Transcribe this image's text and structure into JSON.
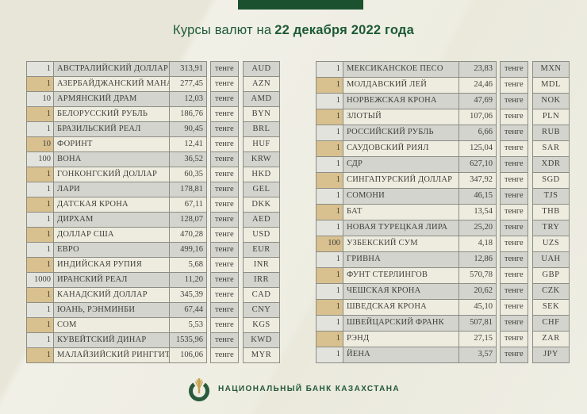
{
  "title": {
    "prefix": "Курсы валют на",
    "date": "22 декабря 2022 года"
  },
  "left_table": {
    "rows": [
      {
        "qty": "1",
        "name": "АВСТРАЛИЙСКИЙ ДОЛЛАР",
        "rate": "313,91",
        "unit": "тенге",
        "code": "AUD"
      },
      {
        "qty": "1",
        "name": "АЗЕРБАЙДЖАНСКИЙ МАНАТ",
        "rate": "277,45",
        "unit": "тенге",
        "code": "AZN"
      },
      {
        "qty": "10",
        "name": "АРМЯНСКИЙ ДРАМ",
        "rate": "12,03",
        "unit": "тенге",
        "code": "AMD"
      },
      {
        "qty": "1",
        "name": "БЕЛОРУССКИЙ РУБЛЬ",
        "rate": "186,76",
        "unit": "тенге",
        "code": "BYN"
      },
      {
        "qty": "1",
        "name": "БРАЗИЛЬСКИЙ РЕАЛ",
        "rate": "90,45",
        "unit": "тенге",
        "code": "BRL"
      },
      {
        "qty": "10",
        "name": "ФОРИНТ",
        "rate": "12,41",
        "unit": "тенге",
        "code": "HUF"
      },
      {
        "qty": "100",
        "name": "ВОНА",
        "rate": "36,52",
        "unit": "тенге",
        "code": "KRW"
      },
      {
        "qty": "1",
        "name": "ГОНКОНГСКИЙ ДОЛЛАР",
        "rate": "60,35",
        "unit": "тенге",
        "code": "HKD"
      },
      {
        "qty": "1",
        "name": "ЛАРИ",
        "rate": "178,81",
        "unit": "тенге",
        "code": "GEL"
      },
      {
        "qty": "1",
        "name": "ДАТСКАЯ КРОНА",
        "rate": "67,11",
        "unit": "тенге",
        "code": "DKK"
      },
      {
        "qty": "1",
        "name": "ДИРХАМ",
        "rate": "128,07",
        "unit": "тенге",
        "code": "AED"
      },
      {
        "qty": "1",
        "name": "ДОЛЛАР США",
        "rate": "470,28",
        "unit": "тенге",
        "code": "USD"
      },
      {
        "qty": "1",
        "name": "ЕВРО",
        "rate": "499,16",
        "unit": "тенге",
        "code": "EUR"
      },
      {
        "qty": "1",
        "name": "ИНДИЙСКАЯ РУПИЯ",
        "rate": "5,68",
        "unit": "тенге",
        "code": "INR"
      },
      {
        "qty": "1000",
        "name": "ИРАНСКИЙ РЕАЛ",
        "rate": "11,20",
        "unit": "тенге",
        "code": "IRR"
      },
      {
        "qty": "1",
        "name": "КАНАДСКИЙ ДОЛЛАР",
        "rate": "345,39",
        "unit": "тенге",
        "code": "CAD"
      },
      {
        "qty": "1",
        "name": "ЮАНЬ, РЭНМИНБИ",
        "rate": "67,44",
        "unit": "тенге",
        "code": "CNY"
      },
      {
        "qty": "1",
        "name": "СОМ",
        "rate": "5,53",
        "unit": "тенге",
        "code": "KGS"
      },
      {
        "qty": "1",
        "name": "КУВЕЙТСКИЙ ДИНАР",
        "rate": "1535,96",
        "unit": "тенге",
        "code": "KWD"
      },
      {
        "qty": "1",
        "name": "МАЛАЙЗИЙСКИЙ РИНГГИТ",
        "rate": "106,06",
        "unit": "тенге",
        "code": "MYR"
      }
    ]
  },
  "right_table": {
    "rows": [
      {
        "qty": "1",
        "name": "МЕКСИКАНСКОЕ ПЕСО",
        "rate": "23,83",
        "unit": "тенге",
        "code": "MXN"
      },
      {
        "qty": "1",
        "name": "МОЛДАВСКИЙ ЛЕЙ",
        "rate": "24,46",
        "unit": "тенге",
        "code": "MDL"
      },
      {
        "qty": "1",
        "name": "НОРВЕЖСКАЯ КРОНА",
        "rate": "47,69",
        "unit": "тенге",
        "code": "NOK"
      },
      {
        "qty": "1",
        "name": "ЗЛОТЫЙ",
        "rate": "107,06",
        "unit": "тенге",
        "code": "PLN"
      },
      {
        "qty": "1",
        "name": "РОССИЙСКИЙ РУБЛЬ",
        "rate": "6,66",
        "unit": "тенге",
        "code": "RUB"
      },
      {
        "qty": "1",
        "name": "САУДОВСКИЙ РИЯЛ",
        "rate": "125,04",
        "unit": "тенге",
        "code": "SAR"
      },
      {
        "qty": "1",
        "name": "СДР",
        "rate": "627,10",
        "unit": "тенге",
        "code": "XDR"
      },
      {
        "qty": "1",
        "name": "СИНГАПУРСКИЙ ДОЛЛАР",
        "rate": "347,92",
        "unit": "тенге",
        "code": "SGD"
      },
      {
        "qty": "1",
        "name": "СОМОНИ",
        "rate": "46,15",
        "unit": "тенге",
        "code": "TJS"
      },
      {
        "qty": "1",
        "name": "БАТ",
        "rate": "13,54",
        "unit": "тенге",
        "code": "THB"
      },
      {
        "qty": "1",
        "name": "НОВАЯ ТУРЕЦКАЯ ЛИРА",
        "rate": "25,20",
        "unit": "тенге",
        "code": "TRY"
      },
      {
        "qty": "100",
        "name": "УЗБЕКСКИЙ СУМ",
        "rate": "4,18",
        "unit": "тенге",
        "code": "UZS"
      },
      {
        "qty": "1",
        "name": "ГРИВНА",
        "rate": "12,86",
        "unit": "тенге",
        "code": "UAH"
      },
      {
        "qty": "1",
        "name": "ФУНТ СТЕРЛИНГОВ",
        "rate": "570,78",
        "unit": "тенге",
        "code": "GBP"
      },
      {
        "qty": "1",
        "name": "ЧЕШСКАЯ КРОНА",
        "rate": "20,62",
        "unit": "тенге",
        "code": "CZK"
      },
      {
        "qty": "1",
        "name": "ШВЕДСКАЯ КРОНА",
        "rate": "45,10",
        "unit": "тенге",
        "code": "SEK"
      },
      {
        "qty": "1",
        "name": "ШВЕЙЦАРСКИЙ ФРАНК",
        "rate": "507,81",
        "unit": "тенге",
        "code": "CHF"
      },
      {
        "qty": "1",
        "name": "РЭНД",
        "rate": "27,15",
        "unit": "тенге",
        "code": "ZAR"
      },
      {
        "qty": "1",
        "name": "ЙЕНА",
        "rate": "3,57",
        "unit": "тенге",
        "code": "JPY"
      }
    ]
  },
  "footer": {
    "bank_name": "НАЦИОНАЛЬНЫЙ БАНК КАЗАХСТАНА",
    "logo": "national-bank-emblem"
  },
  "colors": {
    "banner_green": "#1b512f",
    "title_green": "#1d5a36",
    "row_gray": "#d3d4ce",
    "row_gray_qty": "#e3e3dd",
    "row_cream": "#edecdf",
    "row_tan_qty": "#d8c08f",
    "emblem_gold": "#c5a24e"
  }
}
